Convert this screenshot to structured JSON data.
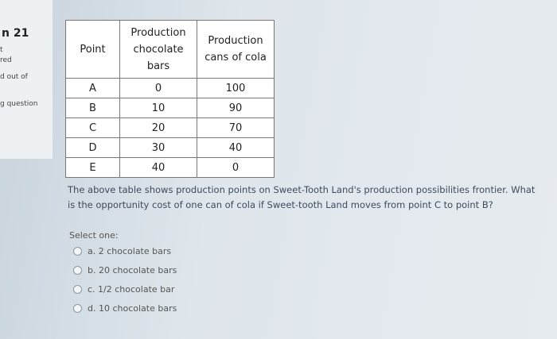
{
  "sidebar": {
    "question_number": "n 21",
    "status_lines": [
      "t",
      "red",
      "d out of",
      "g question"
    ]
  },
  "table": {
    "headers": [
      "Point",
      "Production chocolate bars",
      "Production cans of cola"
    ],
    "rows": [
      [
        "A",
        0,
        100
      ],
      [
        "B",
        10,
        90
      ],
      [
        "C",
        20,
        70
      ],
      [
        "D",
        30,
        40
      ],
      [
        "E",
        40,
        0
      ]
    ]
  },
  "question": "The above table shows production points on Sweet-Tooth Land's production possibilities frontier. What is the opportunity cost of one can of cola if Sweet-tooth Land moves from point C to point B?",
  "prompt": "Select one:",
  "options": [
    "a. 2 chocolate bars",
    "b. 20 chocolate bars",
    "c. 1/2 chocolate bar",
    "d. 10 chocolate bars"
  ]
}
